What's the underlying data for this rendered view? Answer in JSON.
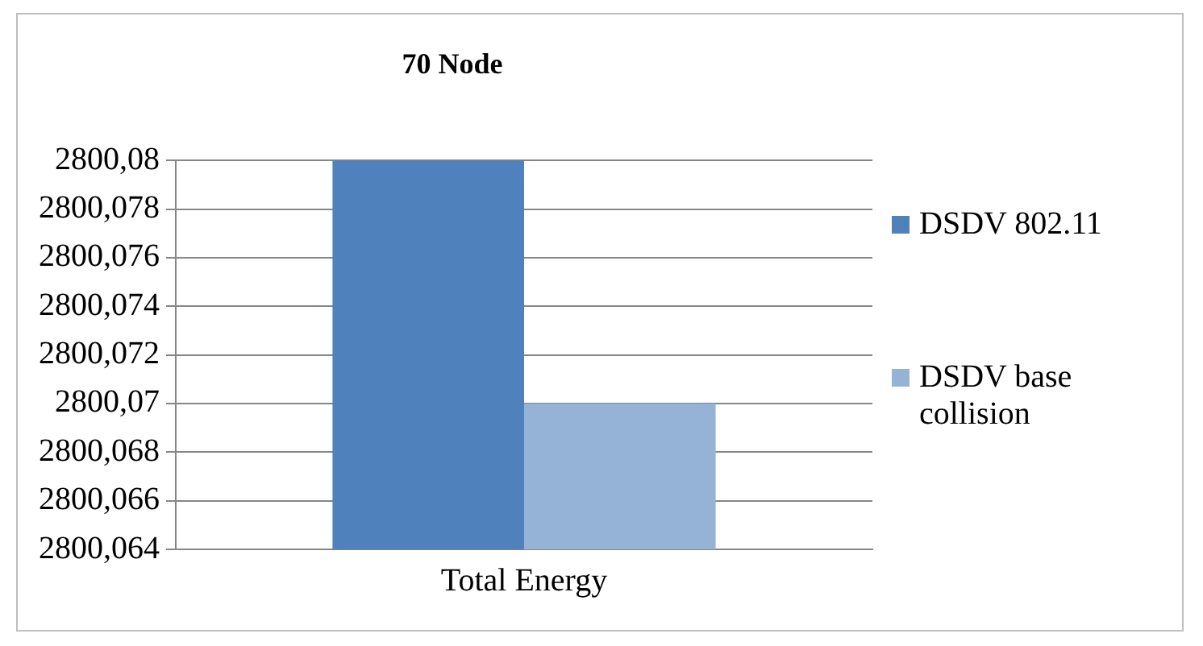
{
  "chart_data": {
    "type": "bar",
    "title": "70 Node",
    "categories": [
      "Total Energy"
    ],
    "series": [
      {
        "name": "DSDV 802.11",
        "color": "#4f81bd",
        "values": [
          2800.08
        ]
      },
      {
        "name": "DSDV base collision",
        "color": "#95b3d7",
        "values": [
          2800.07
        ]
      }
    ],
    "ylim": [
      2800.064,
      2800.08
    ],
    "yticks": [
      {
        "value": 2800.064,
        "label": "2800,064"
      },
      {
        "value": 2800.066,
        "label": "2800,066"
      },
      {
        "value": 2800.068,
        "label": "2800,068"
      },
      {
        "value": 2800.07,
        "label": "2800,07"
      },
      {
        "value": 2800.072,
        "label": "2800,072"
      },
      {
        "value": 2800.074,
        "label": "2800,074"
      },
      {
        "value": 2800.076,
        "label": "2800,076"
      },
      {
        "value": 2800.078,
        "label": "2800,078"
      },
      {
        "value": 2800.08,
        "label": "2800,08"
      }
    ],
    "grid": "y",
    "legend": "right"
  }
}
